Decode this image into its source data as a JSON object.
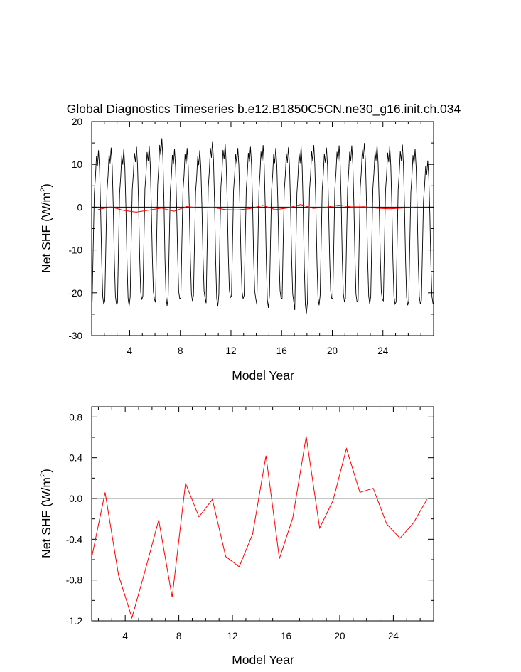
{
  "title": "Global Diagnostics Timeseries b.e12.B1850C5CN.ne30_g16.init.ch.034",
  "colors": {
    "monthly": "#000000",
    "annual": "#ff0000",
    "zero_line": "#888888",
    "axes": "#000000"
  },
  "chart_data": [
    {
      "type": "line",
      "xlabel": "Model Year",
      "ylabel_base": "Net SHF (W/m",
      "ylabel_sup": "2",
      "ylabel_close": ")",
      "xlim": [
        1,
        28
      ],
      "ylim": [
        -30,
        20
      ],
      "x_ticks": [
        4,
        8,
        12,
        16,
        20,
        24
      ],
      "y_ticks": [
        20,
        10,
        0,
        -10,
        -20,
        -30
      ],
      "y_tick_labels": [
        "20",
        "10",
        "0",
        "-10",
        "-20",
        "-30"
      ],
      "reference_line": 0,
      "series": [
        {
          "role": "monthly",
          "x_start": 1.04,
          "x_step": 0.08333,
          "per_year_max": [
            13.3,
            13.9,
            13.6,
            14.1,
            14.3,
            16.1,
            13.6,
            13.8,
            13.3,
            15.4,
            14.8,
            13.8,
            14.1,
            14.5,
            13.8,
            14.0,
            14.2,
            14.5,
            13.9,
            14.4,
            14.4,
            15.0,
            14.5,
            14.2,
            14.6,
            13.6,
            10.9
          ],
          "per_year_min": [
            -22.7,
            -22.6,
            -23.1,
            -21.6,
            -21.5,
            -23.0,
            -21.4,
            -21.9,
            -21.3,
            -23.2,
            -21.1,
            -21.4,
            -21.3,
            -23.5,
            -21.2,
            -22.1,
            -24.8,
            -22.9,
            -21.3,
            -22.0,
            -22.1,
            -22.6,
            -21.6,
            -22.6,
            -22.9,
            -22.6,
            -22.5
          ]
        },
        {
          "role": "annual",
          "x": [
            1.5,
            2.5,
            3.5,
            4.5,
            5.5,
            6.5,
            7.5,
            8.5,
            9.5,
            10.5,
            11.5,
            12.5,
            13.5,
            14.5,
            15.5,
            16.5,
            17.5,
            18.5,
            19.5,
            20.5,
            21.5,
            22.5,
            23.5,
            24.5,
            25.5,
            26.5
          ],
          "values": [
            -0.58,
            0.06,
            -0.75,
            -1.17,
            -0.7,
            -0.21,
            -0.97,
            0.15,
            -0.18,
            -0.01,
            -0.57,
            -0.67,
            -0.35,
            0.42,
            -0.59,
            -0.19,
            0.61,
            -0.29,
            -0.02,
            0.49,
            0.06,
            0.1,
            -0.25,
            -0.39,
            -0.24,
            -0.01
          ]
        }
      ]
    },
    {
      "type": "line",
      "xlabel": "Model Year",
      "ylabel_base": "Net SHF (W/m",
      "ylabel_sup": "2",
      "ylabel_close": ")",
      "xlim": [
        1.5,
        27
      ],
      "ylim": [
        -1.2,
        0.9
      ],
      "x_ticks": [
        4,
        8,
        12,
        16,
        20,
        24
      ],
      "y_ticks": [
        0.8,
        0.4,
        0.0,
        -0.4,
        -0.8,
        -1.2
      ],
      "y_tick_labels": [
        "0.8",
        "0.4",
        "0.0",
        "-0.4",
        "-0.8",
        "-1.2"
      ],
      "reference_line": 0
    }
  ]
}
